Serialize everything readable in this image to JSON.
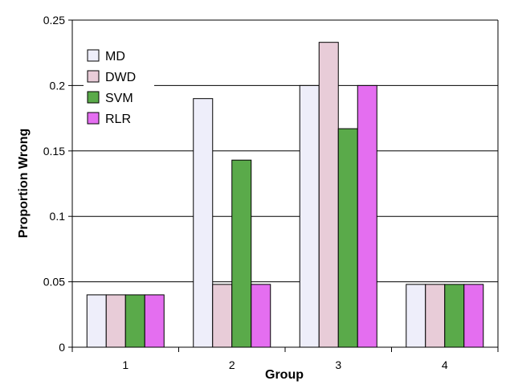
{
  "chart_data": {
    "type": "bar",
    "title": "",
    "xlabel": "Group",
    "ylabel": "Proportion Wrong",
    "categories": [
      "1",
      "2",
      "3",
      "4"
    ],
    "ylim": [
      0,
      0.25
    ],
    "yticks": [
      0,
      0.05,
      0.1,
      0.15,
      0.2,
      0.25
    ],
    "ytick_labels": [
      "0",
      "0.05",
      "0.1",
      "0.15",
      "0.2",
      "0.25"
    ],
    "grid": "horizontal",
    "legend_position": "top-left",
    "series": [
      {
        "name": "MD",
        "color": "#eeeefa",
        "values": [
          0.04,
          0.19,
          0.2,
          0.048
        ]
      },
      {
        "name": "DWD",
        "color": "#e8ccd8",
        "values": [
          0.04,
          0.048,
          0.233,
          0.048
        ]
      },
      {
        "name": "SVM",
        "color": "#5aaa4a",
        "values": [
          0.04,
          0.143,
          0.167,
          0.048
        ]
      },
      {
        "name": "RLR",
        "color": "#e46ef0",
        "values": [
          0.04,
          0.048,
          0.2,
          0.048
        ]
      }
    ]
  }
}
